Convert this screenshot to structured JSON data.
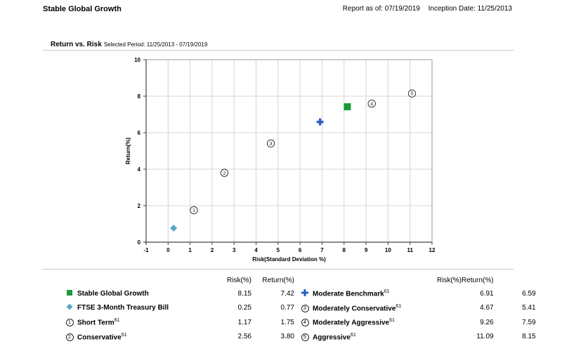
{
  "header": {
    "title": "Stable Global Growth",
    "report_as_of": "Report as of: 07/19/2019",
    "inception_date": "Inception Date: 11/25/2013"
  },
  "section": {
    "title": "Return vs. Risk",
    "selected_period": "Selected Period:  11/25/2013 - 07/19/2019"
  },
  "legend": {
    "risk_header": "Risk(%)",
    "return_header": "Return(%)",
    "left": [
      {
        "name": "Stable Global Growth",
        "sup": "",
        "risk": "8.15",
        "return": "7.42",
        "marker": "square"
      },
      {
        "name": "FTSE 3-Month Treasury Bill",
        "sup": "",
        "risk": "0.25",
        "return": "0.77",
        "marker": "diamond"
      },
      {
        "name": "Short Term",
        "sup": "61",
        "risk": "1.17",
        "return": "1.75",
        "marker": "circle-1"
      },
      {
        "name": "Conservative",
        "sup": "61",
        "risk": "2.56",
        "return": "3.80",
        "marker": "circle-2"
      }
    ],
    "right": [
      {
        "name": "Moderate Benchmark",
        "sup": "61",
        "risk": "6.91",
        "return": "6.59",
        "marker": "cross"
      },
      {
        "name": "Moderately Conservative",
        "sup": "61",
        "risk": "4.67",
        "return": "5.41",
        "marker": "circle-3"
      },
      {
        "name": "Moderately Aggressive",
        "sup": "61",
        "risk": "9.26",
        "return": "7.59",
        "marker": "circle-4"
      },
      {
        "name": "Aggressive",
        "sup": "61",
        "risk": "11.09",
        "return": "8.15",
        "marker": "circle-5"
      }
    ]
  },
  "chart_data": {
    "type": "scatter",
    "title": "Return vs. Risk",
    "xlabel": "Risk(Standard Deviation %)",
    "ylabel": "Return(%)",
    "xlim": [
      -1,
      12
    ],
    "ylim": [
      0,
      10
    ],
    "xticks": [
      -1,
      0,
      1,
      2,
      3,
      4,
      5,
      6,
      7,
      8,
      9,
      10,
      11,
      12
    ],
    "yticks": [
      0,
      2,
      4,
      6,
      8,
      10
    ],
    "grid": true,
    "colors": {
      "square": "#1a9a3a",
      "diamond": "#5aa9c4",
      "cross": "#2a5fc8",
      "circle": "#222222",
      "grid": "#d4d4d4",
      "axis": "#444444"
    },
    "points": [
      {
        "name": "Stable Global Growth",
        "x": 8.15,
        "y": 7.42,
        "marker": "square",
        "label": ""
      },
      {
        "name": "FTSE 3-Month Treasury Bill",
        "x": 0.25,
        "y": 0.77,
        "marker": "diamond",
        "label": ""
      },
      {
        "name": "Short Term",
        "x": 1.17,
        "y": 1.75,
        "marker": "circle",
        "label": "1"
      },
      {
        "name": "Conservative",
        "x": 2.56,
        "y": 3.8,
        "marker": "circle",
        "label": "2"
      },
      {
        "name": "Moderately Conservative",
        "x": 4.67,
        "y": 5.41,
        "marker": "circle",
        "label": "3"
      },
      {
        "name": "Moderate Benchmark",
        "x": 6.91,
        "y": 6.59,
        "marker": "cross",
        "label": ""
      },
      {
        "name": "Moderately Aggressive",
        "x": 9.26,
        "y": 7.59,
        "marker": "circle",
        "label": "4"
      },
      {
        "name": "Aggressive",
        "x": 11.09,
        "y": 8.15,
        "marker": "circle",
        "label": "5"
      }
    ]
  }
}
